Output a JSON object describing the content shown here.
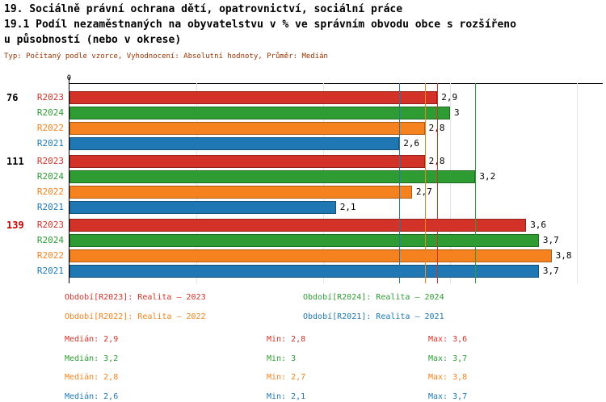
{
  "header": {
    "title_line1": "19. Sociálně právní ochrana dětí, opatrovnictví, sociální práce",
    "title_line2": "19.1 Podíl nezaměstnaných na obyvatelstvu v % ve správním obvodu obce s rozšířeno",
    "title_line3": "u působností (nebo v okrese)",
    "meta": "Typ: Počítaný podle vzorce, Vyhodnocení: Absolutní hodnoty, Průměr: Medián",
    "meta_color": "#993300"
  },
  "chart_data": {
    "type": "bar",
    "orientation": "horizontal",
    "x_axis": {
      "zero_label": "0",
      "min": 0,
      "max": 4.2,
      "gridlines": [
        1,
        2,
        3,
        4
      ]
    },
    "series": [
      {
        "id": "R2023",
        "label": "R2023",
        "color": "#d23228",
        "median": 2.9
      },
      {
        "id": "R2024",
        "label": "R2024",
        "color": "#2e9b33",
        "median": 3.2
      },
      {
        "id": "R2022",
        "label": "R2022",
        "color": "#f5821f",
        "median": 2.8
      },
      {
        "id": "R2021",
        "label": "R2021",
        "color": "#1f77b4",
        "median": 2.6
      }
    ],
    "groups": [
      {
        "label": "76",
        "label_color": "#000000",
        "values": [
          {
            "series": "R2023",
            "value": 2.9,
            "text": "2,9"
          },
          {
            "series": "R2024",
            "value": 3.0,
            "text": "3"
          },
          {
            "series": "R2022",
            "value": 2.8,
            "text": "2,8"
          },
          {
            "series": "R2021",
            "value": 2.6,
            "text": "2,6"
          }
        ]
      },
      {
        "label": "111",
        "label_color": "#000000",
        "values": [
          {
            "series": "R2023",
            "value": 2.8,
            "text": "2,8"
          },
          {
            "series": "R2024",
            "value": 3.2,
            "text": "3,2"
          },
          {
            "series": "R2022",
            "value": 2.7,
            "text": "2,7"
          },
          {
            "series": "R2021",
            "value": 2.1,
            "text": "2,1"
          }
        ]
      },
      {
        "label": "139",
        "label_color": "#cc0000",
        "values": [
          {
            "series": "R2023",
            "value": 3.6,
            "text": "3,6"
          },
          {
            "series": "R2024",
            "value": 3.7,
            "text": "3,7"
          },
          {
            "series": "R2022",
            "value": 3.8,
            "text": "3,8"
          },
          {
            "series": "R2021",
            "value": 3.7,
            "text": "3,7"
          }
        ]
      }
    ]
  },
  "legend": [
    {
      "text": "Období[R2023]: Realita – 2023",
      "color": "#d23228"
    },
    {
      "text": "Období[R2024]: Realita – 2024",
      "color": "#2e9b33"
    },
    {
      "text": "Období[R2022]: Realita – 2022",
      "color": "#f5821f"
    },
    {
      "text": "Období[R2021]: Realita – 2021",
      "color": "#1f77b4"
    }
  ],
  "stats": [
    {
      "color": "#d23228",
      "median": "Medián: 2,9",
      "min": "Min: 2,8",
      "max": "Max: 3,6"
    },
    {
      "color": "#2e9b33",
      "median": "Medián: 3,2",
      "min": "Min: 3",
      "max": "Max: 3,7"
    },
    {
      "color": "#f5821f",
      "median": "Medián: 2,8",
      "min": "Min: 2,7",
      "max": "Max: 3,8"
    },
    {
      "color": "#1f77b4",
      "median": "Medián: 2,6",
      "min": "Min: 2,1",
      "max": "Max: 3,7"
    }
  ]
}
